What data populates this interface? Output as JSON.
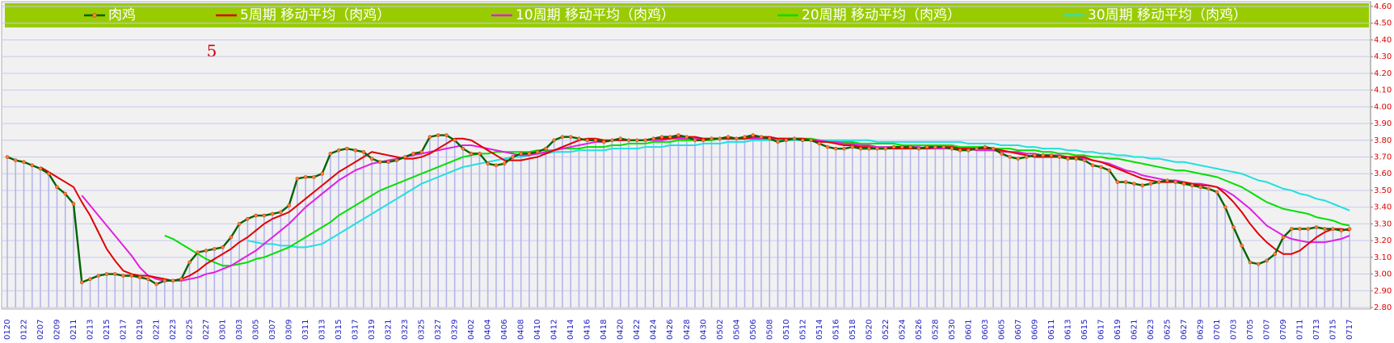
{
  "chart_data": {
    "type": "line",
    "annotation": "5",
    "legend": "top",
    "grid": true,
    "drop_lines": true,
    "ylim": [
      2.8,
      4.6
    ],
    "yticks": [
      {
        "value": 2.8,
        "label": "2.80"
      },
      {
        "value": 2.9,
        "label": "2.90"
      },
      {
        "value": 3.0,
        "label": "3.00"
      },
      {
        "value": 3.1,
        "label": "3.10"
      },
      {
        "value": 3.2,
        "label": "3.20"
      },
      {
        "value": 3.3,
        "label": "3.30"
      },
      {
        "value": 3.4,
        "label": "3.40"
      },
      {
        "value": 3.5,
        "label": "3.50"
      },
      {
        "value": 3.6,
        "label": "3.60"
      },
      {
        "value": 3.7,
        "label": "3.70"
      },
      {
        "value": 3.8,
        "label": "3.80"
      },
      {
        "value": 3.9,
        "label": "3.90"
      },
      {
        "value": 4.0,
        "label": "4.00"
      },
      {
        "value": 4.1,
        "label": "4.10"
      },
      {
        "value": 4.2,
        "label": "4.20"
      },
      {
        "value": 4.3,
        "label": "4.30"
      },
      {
        "value": 4.4,
        "label": "4.40"
      },
      {
        "value": 4.5,
        "label": "4.50"
      },
      {
        "value": 4.6,
        "label": "4.60"
      }
    ],
    "categories": [
      "0120",
      null,
      "0122",
      null,
      "0207",
      null,
      "0209",
      null,
      "0211",
      null,
      "0213",
      null,
      "0215",
      null,
      "0217",
      null,
      "0219",
      null,
      "0221",
      null,
      "0223",
      null,
      "0225",
      null,
      "0227",
      null,
      "0301",
      null,
      "0303",
      null,
      "0305",
      null,
      "0307",
      null,
      "0309",
      null,
      "0311",
      null,
      "0313",
      null,
      "0315",
      null,
      "0317",
      null,
      "0319",
      null,
      "0321",
      null,
      "0323",
      null,
      "0325",
      null,
      "0327",
      null,
      "0329",
      null,
      "0402",
      null,
      "0404",
      null,
      "0406",
      null,
      "0408",
      null,
      "0410",
      null,
      "0412",
      null,
      "0414",
      null,
      "0416",
      null,
      "0418",
      null,
      "0420",
      null,
      "0422",
      null,
      "0424",
      null,
      "0426",
      null,
      "0428",
      null,
      "0430",
      null,
      "0502",
      null,
      "0504",
      null,
      "0506",
      null,
      "0508",
      null,
      "0510",
      null,
      "0512",
      null,
      "0514",
      null,
      "0516",
      null,
      "0518",
      null,
      "0520",
      null,
      "0522",
      null,
      "0524",
      null,
      "0526",
      null,
      "0528",
      null,
      "0530",
      null,
      "0601",
      null,
      "0603",
      null,
      "0605",
      null,
      "0607",
      null,
      "0609",
      null,
      "0611",
      null,
      "0613",
      null,
      "0615",
      null,
      "0617",
      null,
      "0619",
      null,
      "0621",
      null,
      "0623",
      null,
      "0625",
      null,
      "0627",
      null,
      "0629",
      null,
      "0701",
      null,
      "0703",
      null,
      "0705",
      null,
      "0707",
      null,
      "0709",
      null,
      "0711",
      null,
      "0713",
      null,
      "0715",
      null,
      "0717"
    ],
    "series": [
      {
        "name": "肉鸡",
        "color": "#006400",
        "marker": true,
        "values": [
          3.7,
          3.68,
          3.67,
          3.65,
          3.63,
          3.6,
          3.52,
          3.48,
          3.42,
          2.95,
          2.97,
          2.99,
          3.0,
          3.0,
          2.99,
          2.99,
          2.98,
          2.97,
          2.94,
          2.96,
          2.96,
          2.97,
          3.07,
          3.13,
          3.14,
          3.15,
          3.16,
          3.22,
          3.3,
          3.33,
          3.35,
          3.35,
          3.36,
          3.37,
          3.41,
          3.57,
          3.58,
          3.58,
          3.6,
          3.72,
          3.74,
          3.75,
          3.74,
          3.73,
          3.69,
          3.67,
          3.67,
          3.68,
          3.7,
          3.72,
          3.73,
          3.82,
          3.83,
          3.83,
          3.8,
          3.75,
          3.72,
          3.72,
          3.66,
          3.65,
          3.66,
          3.7,
          3.72,
          3.72,
          3.73,
          3.75,
          3.8,
          3.82,
          3.82,
          3.81,
          3.8,
          3.8,
          3.79,
          3.8,
          3.81,
          3.8,
          3.8,
          3.8,
          3.81,
          3.82,
          3.82,
          3.83,
          3.82,
          3.8,
          3.8,
          3.81,
          3.81,
          3.82,
          3.81,
          3.82,
          3.83,
          3.82,
          3.81,
          3.79,
          3.8,
          3.81,
          3.8,
          3.8,
          3.78,
          3.76,
          3.75,
          3.75,
          3.76,
          3.75,
          3.75,
          3.75,
          3.75,
          3.76,
          3.76,
          3.76,
          3.75,
          3.76,
          3.76,
          3.76,
          3.75,
          3.74,
          3.74,
          3.75,
          3.76,
          3.75,
          3.72,
          3.7,
          3.69,
          3.7,
          3.71,
          3.71,
          3.71,
          3.7,
          3.69,
          3.69,
          3.68,
          3.65,
          3.64,
          3.62,
          3.55,
          3.55,
          3.54,
          3.53,
          3.54,
          3.55,
          3.56,
          3.55,
          3.54,
          3.53,
          3.52,
          3.51,
          3.49,
          3.4,
          3.28,
          3.17,
          3.07,
          3.06,
          3.08,
          3.12,
          3.22,
          3.27,
          3.27,
          3.27,
          3.28,
          3.27,
          3.27,
          3.26,
          3.27
        ]
      },
      {
        "name": "5周期 移动平均（肉鸡）",
        "color": "#e00000",
        "values": [
          null,
          null,
          null,
          null,
          3.64,
          3.61,
          3.58,
          3.55,
          3.52,
          3.43,
          3.35,
          3.25,
          3.15,
          3.08,
          3.02,
          3.0,
          2.99,
          2.99,
          2.98,
          2.97,
          2.96,
          2.97,
          2.99,
          3.02,
          3.06,
          3.09,
          3.12,
          3.15,
          3.19,
          3.22,
          3.26,
          3.3,
          3.33,
          3.35,
          3.37,
          3.41,
          3.45,
          3.49,
          3.53,
          3.57,
          3.61,
          3.64,
          3.67,
          3.7,
          3.73,
          3.72,
          3.71,
          3.7,
          3.69,
          3.69,
          3.7,
          3.72,
          3.75,
          3.78,
          3.81,
          3.81,
          3.8,
          3.77,
          3.74,
          3.71,
          3.68,
          3.68,
          3.68,
          3.69,
          3.7,
          3.72,
          3.74,
          3.76,
          3.78,
          3.8,
          3.81,
          3.81,
          3.8,
          3.8,
          3.8,
          3.8,
          3.8,
          3.8,
          3.81,
          3.81,
          3.81,
          3.82,
          3.82,
          3.82,
          3.81,
          3.81,
          3.81,
          3.81,
          3.81,
          3.81,
          3.82,
          3.82,
          3.82,
          3.81,
          3.81,
          3.81,
          3.81,
          3.8,
          3.79,
          3.79,
          3.78,
          3.77,
          3.77,
          3.76,
          3.76,
          3.75,
          3.75,
          3.75,
          3.75,
          3.75,
          3.75,
          3.75,
          3.76,
          3.76,
          3.76,
          3.75,
          3.75,
          3.75,
          3.75,
          3.75,
          3.74,
          3.73,
          3.72,
          3.71,
          3.7,
          3.7,
          3.7,
          3.7,
          3.7,
          3.7,
          3.7,
          3.68,
          3.67,
          3.65,
          3.63,
          3.61,
          3.59,
          3.57,
          3.56,
          3.55,
          3.55,
          3.55,
          3.55,
          3.54,
          3.53,
          3.53,
          3.52,
          3.48,
          3.43,
          3.37,
          3.3,
          3.24,
          3.19,
          3.15,
          3.12,
          3.12,
          3.14,
          3.18,
          3.22,
          3.25,
          3.27,
          3.27,
          3.26
        ]
      },
      {
        "name": "10周期 移动平均（肉鸡）",
        "color": "#e020e0",
        "values": [
          null,
          null,
          null,
          null,
          null,
          null,
          null,
          null,
          null,
          3.47,
          3.41,
          3.35,
          3.29,
          3.23,
          3.17,
          3.11,
          3.04,
          2.99,
          2.97,
          2.96,
          2.96,
          2.96,
          2.97,
          2.98,
          3.0,
          3.01,
          3.03,
          3.05,
          3.08,
          3.11,
          3.14,
          3.18,
          3.22,
          3.26,
          3.3,
          3.35,
          3.4,
          3.44,
          3.48,
          3.52,
          3.56,
          3.59,
          3.62,
          3.64,
          3.66,
          3.67,
          3.68,
          3.69,
          3.7,
          3.71,
          3.72,
          3.73,
          3.74,
          3.75,
          3.76,
          3.77,
          3.77,
          3.76,
          3.75,
          3.74,
          3.73,
          3.72,
          3.71,
          3.71,
          3.72,
          3.73,
          3.74,
          3.75,
          3.76,
          3.77,
          3.78,
          3.79,
          3.79,
          3.8,
          3.8,
          3.8,
          3.8,
          3.8,
          3.8,
          3.8,
          3.81,
          3.81,
          3.81,
          3.81,
          3.81,
          3.81,
          3.81,
          3.81,
          3.81,
          3.81,
          3.81,
          3.81,
          3.81,
          3.81,
          3.81,
          3.81,
          3.81,
          3.8,
          3.8,
          3.79,
          3.79,
          3.78,
          3.78,
          3.77,
          3.77,
          3.76,
          3.76,
          3.76,
          3.76,
          3.76,
          3.76,
          3.75,
          3.75,
          3.75,
          3.75,
          3.75,
          3.75,
          3.74,
          3.74,
          3.74,
          3.73,
          3.73,
          3.73,
          3.72,
          3.72,
          3.71,
          3.71,
          3.71,
          3.7,
          3.7,
          3.69,
          3.68,
          3.67,
          3.66,
          3.64,
          3.62,
          3.61,
          3.59,
          3.58,
          3.57,
          3.56,
          3.56,
          3.55,
          3.54,
          3.54,
          3.53,
          3.52,
          3.5,
          3.47,
          3.43,
          3.39,
          3.34,
          3.29,
          3.26,
          3.23,
          3.21,
          3.2,
          3.19,
          3.19,
          3.19,
          3.2,
          3.21,
          3.23
        ]
      },
      {
        "name": "20周期 移动平均（肉鸡）",
        "color": "#00e000",
        "values": [
          null,
          null,
          null,
          null,
          null,
          null,
          null,
          null,
          null,
          null,
          null,
          null,
          null,
          null,
          null,
          null,
          null,
          null,
          null,
          3.23,
          3.21,
          3.18,
          3.15,
          3.12,
          3.09,
          3.07,
          3.05,
          3.05,
          3.06,
          3.07,
          3.09,
          3.1,
          3.12,
          3.14,
          3.16,
          3.19,
          3.22,
          3.25,
          3.28,
          3.31,
          3.35,
          3.38,
          3.41,
          3.44,
          3.47,
          3.5,
          3.52,
          3.54,
          3.56,
          3.58,
          3.6,
          3.62,
          3.64,
          3.66,
          3.68,
          3.7,
          3.71,
          3.72,
          3.72,
          3.73,
          3.73,
          3.73,
          3.73,
          3.73,
          3.74,
          3.74,
          3.74,
          3.75,
          3.75,
          3.75,
          3.76,
          3.76,
          3.76,
          3.77,
          3.77,
          3.78,
          3.78,
          3.78,
          3.79,
          3.79,
          3.79,
          3.8,
          3.8,
          3.8,
          3.8,
          3.8,
          3.81,
          3.81,
          3.81,
          3.81,
          3.81,
          3.81,
          3.81,
          3.81,
          3.81,
          3.81,
          3.81,
          3.81,
          3.8,
          3.79,
          3.79,
          3.79,
          3.79,
          3.78,
          3.78,
          3.78,
          3.78,
          3.78,
          3.77,
          3.77,
          3.77,
          3.77,
          3.77,
          3.77,
          3.77,
          3.76,
          3.76,
          3.76,
          3.76,
          3.75,
          3.75,
          3.75,
          3.74,
          3.74,
          3.74,
          3.73,
          3.73,
          3.72,
          3.72,
          3.71,
          3.71,
          3.7,
          3.7,
          3.69,
          3.69,
          3.68,
          3.67,
          3.66,
          3.65,
          3.64,
          3.63,
          3.62,
          3.62,
          3.61,
          3.6,
          3.59,
          3.58,
          3.56,
          3.54,
          3.52,
          3.49,
          3.46,
          3.43,
          3.41,
          3.39,
          3.38,
          3.37,
          3.36,
          3.34,
          3.33,
          3.32,
          3.3,
          3.29
        ]
      },
      {
        "name": "30周期 移动平均（肉鸡）",
        "color": "#20e0e0",
        "values": [
          null,
          null,
          null,
          null,
          null,
          null,
          null,
          null,
          null,
          null,
          null,
          null,
          null,
          null,
          null,
          null,
          null,
          null,
          null,
          null,
          null,
          null,
          null,
          null,
          null,
          null,
          null,
          null,
          null,
          3.2,
          3.19,
          3.18,
          3.18,
          3.17,
          3.17,
          3.16,
          3.16,
          3.17,
          3.18,
          3.21,
          3.24,
          3.27,
          3.3,
          3.33,
          3.36,
          3.39,
          3.42,
          3.45,
          3.48,
          3.51,
          3.54,
          3.56,
          3.58,
          3.6,
          3.62,
          3.64,
          3.65,
          3.66,
          3.67,
          3.68,
          3.69,
          3.7,
          3.7,
          3.71,
          3.72,
          3.72,
          3.73,
          3.73,
          3.73,
          3.74,
          3.74,
          3.74,
          3.74,
          3.75,
          3.75,
          3.75,
          3.75,
          3.76,
          3.76,
          3.76,
          3.77,
          3.77,
          3.77,
          3.77,
          3.78,
          3.78,
          3.78,
          3.79,
          3.79,
          3.79,
          3.8,
          3.8,
          3.8,
          3.8,
          3.8,
          3.8,
          3.8,
          3.8,
          3.8,
          3.8,
          3.8,
          3.8,
          3.8,
          3.8,
          3.8,
          3.79,
          3.79,
          3.79,
          3.79,
          3.79,
          3.79,
          3.79,
          3.79,
          3.79,
          3.79,
          3.79,
          3.78,
          3.78,
          3.78,
          3.78,
          3.77,
          3.77,
          3.77,
          3.76,
          3.76,
          3.75,
          3.75,
          3.75,
          3.74,
          3.74,
          3.73,
          3.73,
          3.72,
          3.72,
          3.71,
          3.71,
          3.7,
          3.7,
          3.69,
          3.69,
          3.68,
          3.67,
          3.67,
          3.66,
          3.65,
          3.64,
          3.63,
          3.62,
          3.61,
          3.6,
          3.58,
          3.56,
          3.55,
          3.53,
          3.51,
          3.5,
          3.48,
          3.47,
          3.45,
          3.44,
          3.42,
          3.4,
          3.38
        ]
      }
    ]
  }
}
